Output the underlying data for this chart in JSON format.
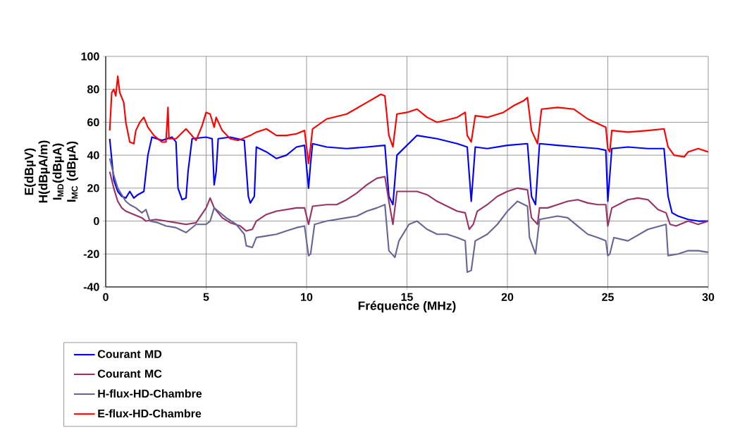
{
  "chart_data": {
    "type": "line",
    "xlabel": "Fréquence (MHz)",
    "ylabel": "E(dBµV) H(dBµA/m) I$_{MD}$(dBµA) I$_{MC}$ (dBµA)",
    "xlim": [
      0,
      30
    ],
    "ylim": [
      -40,
      100
    ],
    "xticks": [
      0,
      5,
      10,
      15,
      20,
      25,
      30
    ],
    "yticks": [
      -40,
      -20,
      0,
      20,
      40,
      60,
      80,
      100
    ],
    "grid": true,
    "legend": "bottom left",
    "series": [
      {
        "name": "Courant MD",
        "color": "#0000ff",
        "x": [
          0.2,
          0.4,
          0.6,
          0.8,
          1.0,
          1.2,
          1.4,
          1.6,
          1.9,
          2.1,
          2.3,
          2.8,
          3.3,
          3.5,
          3.6,
          3.8,
          4.0,
          4.1,
          4.3,
          5.0,
          5.3,
          5.4,
          5.5,
          5.6,
          6.2,
          6.9,
          7.1,
          7.2,
          7.4,
          7.5,
          8.0,
          8.5,
          9.0,
          9.5,
          9.9,
          10.1,
          10.2,
          10.3,
          11,
          12,
          13,
          13.9,
          14.1,
          14.3,
          14.5,
          15.5,
          16.5,
          17.5,
          18.0,
          18.2,
          18.4,
          19,
          20,
          21.0,
          21.2,
          21.4,
          21.6,
          22.5,
          23.5,
          24.5,
          24.9,
          25.0,
          25.2,
          26,
          27,
          27.8,
          28.0,
          28.2,
          28.5,
          29,
          29.5,
          30
        ],
        "values": [
          50,
          25,
          18,
          15,
          14,
          18,
          14,
          16,
          18,
          40,
          51,
          49,
          51,
          48,
          20,
          13,
          14,
          30,
          50,
          51,
          50,
          22,
          30,
          50,
          51,
          49,
          15,
          11,
          15,
          45,
          42,
          38,
          40,
          45,
          46,
          20,
          35,
          47,
          45,
          44,
          45,
          46,
          15,
          10,
          40,
          52,
          50,
          47,
          45,
          12,
          45,
          44,
          46,
          47,
          15,
          10,
          47,
          46,
          45,
          44,
          43,
          12,
          44,
          45,
          44,
          44,
          15,
          5,
          3,
          1,
          0,
          0
        ]
      },
      {
        "name": "Courant  MC",
        "color": "#993366",
        "x": [
          0.2,
          0.4,
          0.6,
          0.8,
          1.0,
          1.4,
          1.8,
          2.0,
          2.5,
          3.0,
          3.5,
          4.0,
          4.5,
          5.0,
          5.2,
          5.4,
          5.8,
          6.2,
          6.7,
          7.0,
          7.3,
          7.5,
          8.0,
          8.5,
          9.0,
          9.5,
          9.9,
          10.1,
          10.3,
          11,
          11.5,
          12,
          12.5,
          13,
          13.5,
          13.9,
          14.1,
          14.3,
          14.5,
          15,
          15.5,
          16,
          16.5,
          17,
          17.5,
          17.9,
          18.1,
          18.3,
          18.5,
          19,
          19.5,
          20,
          20.5,
          21,
          21.2,
          21.5,
          21.6,
          22,
          22.5,
          23,
          23.5,
          24,
          24.5,
          24.9,
          25.0,
          25.2,
          26,
          26.5,
          27,
          27.5,
          27.9,
          28.1,
          28.4,
          29,
          29.5,
          30
        ],
        "values": [
          30,
          20,
          12,
          8,
          6,
          4,
          2,
          0,
          1,
          0,
          -1,
          -2,
          -1,
          8,
          14,
          8,
          2,
          -1,
          -3,
          -6,
          -5,
          0,
          4,
          6,
          7,
          8,
          8,
          -2,
          9,
          10,
          10,
          13,
          17,
          22,
          26,
          27,
          12,
          -2,
          18,
          18,
          18,
          16,
          12,
          9,
          6,
          5,
          -5,
          -2,
          6,
          10,
          15,
          18,
          20,
          19,
          2,
          -2,
          8,
          8,
          10,
          12,
          13,
          11,
          10,
          10,
          -3,
          8,
          13,
          14,
          13,
          7,
          5,
          -2,
          -3,
          0,
          -2,
          0
        ]
      },
      {
        "name": "H-flux-HD-Chambre",
        "color": "#666699",
        "x": [
          0.2,
          0.4,
          0.6,
          0.8,
          1.0,
          1.2,
          1.5,
          1.8,
          2.0,
          2.2,
          2.6,
          3,
          3.5,
          4.0,
          4.2,
          4.5,
          5.0,
          5.2,
          5.4,
          5.6,
          6.0,
          6.5,
          6.9,
          7.0,
          7.3,
          7.5,
          8,
          8.5,
          9,
          9.5,
          9.9,
          10.1,
          10.2,
          10.4,
          11,
          12,
          12.5,
          13,
          13.5,
          13.9,
          14.1,
          14.4,
          14.6,
          15.1,
          15.5,
          16,
          16.5,
          17,
          17.5,
          17.9,
          18.0,
          18.2,
          18.4,
          19,
          19.5,
          20,
          20.5,
          21,
          21.1,
          21.4,
          21.6,
          22.5,
          23,
          23.5,
          24,
          24.5,
          24.9,
          25.0,
          25.1,
          25.3,
          26,
          27,
          27.9,
          28.0,
          28.5,
          29,
          29.5,
          30
        ],
        "values": [
          38,
          28,
          20,
          16,
          12,
          10,
          8,
          5,
          7,
          0,
          -1,
          -3,
          -4,
          -7,
          -5,
          -2,
          -2,
          0,
          8,
          6,
          2,
          -2,
          -8,
          -15,
          -16,
          -10,
          -9,
          -8,
          -6,
          -4,
          -3,
          -21,
          -20,
          -2,
          0,
          2,
          3,
          6,
          8,
          10,
          -18,
          -22,
          -12,
          -2,
          0,
          -5,
          -8,
          -8,
          -10,
          -12,
          -31,
          -30,
          -12,
          -8,
          -2,
          6,
          12,
          9,
          -10,
          -20,
          1,
          3,
          2,
          -3,
          -8,
          -10,
          -12,
          -21,
          -20,
          -10,
          -12,
          -5,
          -2,
          -21,
          -20,
          -18,
          -18,
          -19
        ]
      },
      {
        "name": "E-flux-HD-Chambre",
        "color": "#ff0000",
        "x": [
          0.2,
          0.3,
          0.4,
          0.5,
          0.6,
          0.7,
          0.9,
          1.0,
          1.2,
          1.4,
          1.5,
          1.7,
          1.9,
          2.1,
          2.4,
          2.8,
          3.0,
          3.1,
          3.15,
          3.5,
          4.0,
          4.5,
          4.8,
          5.0,
          5.2,
          5.4,
          5.5,
          5.8,
          6.2,
          6.6,
          7.2,
          7.5,
          8,
          8.5,
          9.0,
          9.5,
          9.9,
          10.1,
          10.2,
          10.3,
          11,
          12,
          13,
          13.7,
          13.9,
          14.1,
          14.3,
          14.5,
          15,
          15.5,
          16,
          16.5,
          17.5,
          17.9,
          18.0,
          18.2,
          18.4,
          19,
          19.8,
          20.3,
          20.8,
          21.0,
          21.2,
          21.5,
          21.7,
          22.5,
          23.3,
          24,
          24.9,
          25.0,
          25.1,
          25.2,
          26,
          27,
          27.8,
          28.0,
          28.3,
          28.8,
          29,
          29.5,
          30
        ],
        "values": [
          55,
          78,
          80,
          76,
          88,
          78,
          72,
          60,
          48,
          47,
          55,
          60,
          63,
          57,
          52,
          48,
          48,
          69,
          50,
          50,
          56,
          49,
          58,
          66,
          65,
          57,
          63,
          55,
          50,
          49,
          52,
          54,
          56,
          52,
          52,
          53,
          55,
          35,
          45,
          56,
          62,
          65,
          72,
          77,
          76,
          52,
          45,
          65,
          66,
          68,
          63,
          60,
          63,
          66,
          52,
          48,
          64,
          63,
          66,
          70,
          73,
          75,
          55,
          47,
          68,
          69,
          68,
          62,
          57,
          44,
          42,
          55,
          54,
          55,
          56,
          45,
          40,
          39,
          42,
          44,
          42
        ]
      }
    ]
  }
}
